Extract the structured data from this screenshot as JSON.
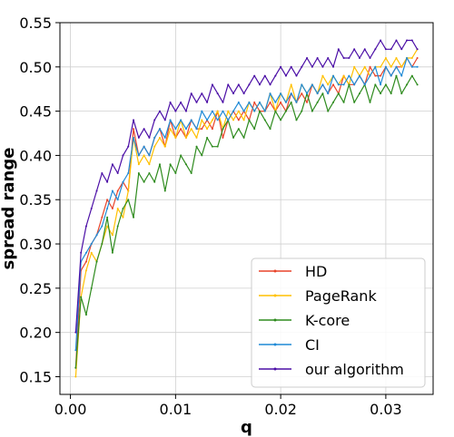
{
  "chart_data": {
    "type": "line",
    "title": "",
    "xlabel": "q",
    "ylabel": "spread range",
    "xlim": [
      -0.001,
      0.0345
    ],
    "ylim": [
      0.13,
      0.55
    ],
    "xticks": [
      0.0,
      0.01,
      0.02,
      0.03
    ],
    "xtick_labels": [
      "0.00",
      "0.01",
      "0.02",
      "0.03"
    ],
    "yticks": [
      0.15,
      0.2,
      0.25,
      0.3,
      0.35,
      0.4,
      0.45,
      0.5,
      0.55
    ],
    "ytick_labels": [
      "0.15",
      "0.20",
      "0.25",
      "0.30",
      "0.35",
      "0.40",
      "0.45",
      "0.50",
      "0.55"
    ],
    "grid": true,
    "legend_position": "lower-right",
    "x": [
      0.0005,
      0.001,
      0.0015,
      0.002,
      0.0025,
      0.003,
      0.0035,
      0.004,
      0.0045,
      0.005,
      0.0055,
      0.006,
      0.0065,
      0.007,
      0.0075,
      0.008,
      0.0085,
      0.009,
      0.0095,
      0.01,
      0.0105,
      0.011,
      0.0115,
      0.012,
      0.0125,
      0.013,
      0.0135,
      0.014,
      0.0145,
      0.015,
      0.0155,
      0.016,
      0.0165,
      0.017,
      0.0175,
      0.018,
      0.0185,
      0.019,
      0.0195,
      0.02,
      0.0205,
      0.021,
      0.0215,
      0.022,
      0.0225,
      0.023,
      0.0235,
      0.024,
      0.0245,
      0.025,
      0.0255,
      0.026,
      0.0265,
      0.027,
      0.0275,
      0.028,
      0.0285,
      0.029,
      0.0295,
      0.03,
      0.0305,
      0.031,
      0.0315,
      0.032,
      0.0325,
      0.033
    ],
    "series": [
      {
        "name": "HD",
        "color": "#e8442a",
        "values": [
          0.16,
          0.27,
          0.28,
          0.3,
          0.31,
          0.33,
          0.35,
          0.34,
          0.36,
          0.37,
          0.36,
          0.43,
          0.4,
          0.41,
          0.4,
          0.42,
          0.43,
          0.41,
          0.44,
          0.42,
          0.43,
          0.42,
          0.44,
          0.43,
          0.43,
          0.44,
          0.43,
          0.45,
          0.42,
          0.44,
          0.45,
          0.44,
          0.45,
          0.44,
          0.46,
          0.45,
          0.45,
          0.46,
          0.45,
          0.46,
          0.45,
          0.47,
          0.46,
          0.47,
          0.46,
          0.48,
          0.47,
          0.48,
          0.47,
          0.48,
          0.47,
          0.49,
          0.48,
          0.48,
          0.49,
          0.48,
          0.5,
          0.49,
          0.49,
          0.5,
          0.49,
          0.5,
          0.5,
          0.51,
          0.5,
          0.51
        ]
      },
      {
        "name": "PageRank",
        "color": "#ffc000",
        "values": [
          0.15,
          0.24,
          0.27,
          0.29,
          0.28,
          0.3,
          0.32,
          0.31,
          0.34,
          0.33,
          0.36,
          0.42,
          0.39,
          0.4,
          0.39,
          0.41,
          0.42,
          0.41,
          0.43,
          0.42,
          0.44,
          0.42,
          0.43,
          0.42,
          0.44,
          0.43,
          0.44,
          0.45,
          0.43,
          0.45,
          0.44,
          0.45,
          0.44,
          0.46,
          0.45,
          0.46,
          0.45,
          0.47,
          0.45,
          0.47,
          0.46,
          0.48,
          0.46,
          0.48,
          0.47,
          0.48,
          0.47,
          0.49,
          0.48,
          0.49,
          0.48,
          0.49,
          0.48,
          0.5,
          0.49,
          0.5,
          0.49,
          0.5,
          0.5,
          0.51,
          0.5,
          0.51,
          0.5,
          0.51,
          0.51,
          0.52
        ]
      },
      {
        "name": "K-core",
        "color": "#2e8b1e",
        "values": [
          0.16,
          0.24,
          0.22,
          0.25,
          0.28,
          0.3,
          0.33,
          0.29,
          0.32,
          0.34,
          0.35,
          0.33,
          0.38,
          0.37,
          0.38,
          0.37,
          0.39,
          0.36,
          0.39,
          0.38,
          0.4,
          0.39,
          0.38,
          0.41,
          0.4,
          0.42,
          0.41,
          0.41,
          0.43,
          0.44,
          0.42,
          0.43,
          0.42,
          0.44,
          0.43,
          0.45,
          0.44,
          0.43,
          0.45,
          0.44,
          0.45,
          0.46,
          0.44,
          0.45,
          0.47,
          0.45,
          0.46,
          0.47,
          0.45,
          0.46,
          0.47,
          0.46,
          0.48,
          0.46,
          0.47,
          0.48,
          0.46,
          0.48,
          0.47,
          0.48,
          0.47,
          0.49,
          0.47,
          0.48,
          0.49,
          0.48
        ]
      },
      {
        "name": "CI",
        "color": "#1f8ad6",
        "values": [
          0.18,
          0.28,
          0.29,
          0.3,
          0.31,
          0.32,
          0.34,
          0.36,
          0.35,
          0.37,
          0.38,
          0.42,
          0.4,
          0.41,
          0.4,
          0.42,
          0.43,
          0.42,
          0.44,
          0.43,
          0.44,
          0.43,
          0.44,
          0.43,
          0.45,
          0.44,
          0.45,
          0.44,
          0.45,
          0.44,
          0.45,
          0.46,
          0.45,
          0.46,
          0.45,
          0.46,
          0.45,
          0.47,
          0.46,
          0.47,
          0.46,
          0.47,
          0.46,
          0.48,
          0.47,
          0.48,
          0.47,
          0.48,
          0.47,
          0.49,
          0.48,
          0.48,
          0.49,
          0.48,
          0.49,
          0.48,
          0.49,
          0.5,
          0.48,
          0.5,
          0.49,
          0.5,
          0.49,
          0.51,
          0.5,
          0.5
        ]
      },
      {
        "name": "our algorithm",
        "color": "#4b0ea6",
        "values": [
          0.2,
          0.29,
          0.32,
          0.34,
          0.36,
          0.38,
          0.37,
          0.39,
          0.38,
          0.4,
          0.41,
          0.44,
          0.42,
          0.43,
          0.42,
          0.44,
          0.45,
          0.44,
          0.46,
          0.45,
          0.46,
          0.45,
          0.47,
          0.46,
          0.47,
          0.46,
          0.48,
          0.47,
          0.46,
          0.48,
          0.47,
          0.48,
          0.47,
          0.48,
          0.49,
          0.48,
          0.49,
          0.48,
          0.49,
          0.5,
          0.49,
          0.5,
          0.49,
          0.5,
          0.51,
          0.5,
          0.51,
          0.5,
          0.51,
          0.5,
          0.52,
          0.51,
          0.51,
          0.52,
          0.51,
          0.52,
          0.51,
          0.52,
          0.53,
          0.52,
          0.52,
          0.53,
          0.52,
          0.53,
          0.53,
          0.52
        ]
      }
    ]
  }
}
